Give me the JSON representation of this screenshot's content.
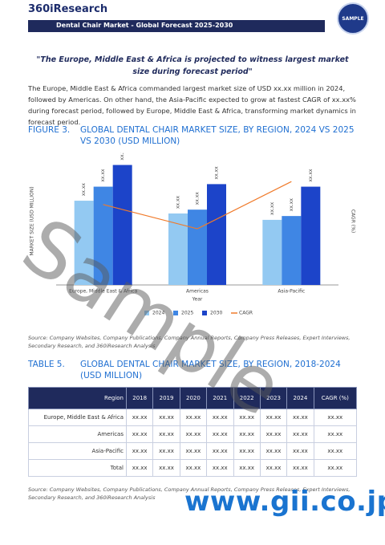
{
  "header": {
    "logo": "360iResearch",
    "title": "Dental Chair Market - Global Forecast 2025-2030",
    "badge": "SAMPLE"
  },
  "quote": "\"The Europe, Middle East & Africa is projected to witness largest market size during forecast period\"",
  "paragraph": "The Europe, Middle East & Africa commanded largest market size of USD xx.xx million in 2024, followed by Americas. On other hand, the Asia-Pacific expected to grow at fastest CAGR of xx.xx% during forecast period, followed by Europe, Middle East & Africa, transforming market dynamics in forecast period.",
  "figure": {
    "number": "FIGURE 3.",
    "title": "GLOBAL DENTAL CHAIR MARKET SIZE, BY REGION, 2024 VS 2025 VS 2030 (USD MILLION)",
    "source": "Source: Company Websites, Company Publications, Company Annual Reports, Company Press Releases, Expert Interviews, Secondary Research, and 360iResearch Analysis"
  },
  "chart_data": {
    "type": "bar",
    "categories": [
      "Europe, Middle East & Africa",
      "Americas",
      "Asia-Pacific"
    ],
    "x_label": "Year",
    "y_label": "MARKET SIZE (USD MILLION)",
    "y2_label": "CAGR (%)",
    "ylim": [
      0,
      100
    ],
    "y2lim": [
      0,
      100
    ],
    "series": [
      {
        "name": "2024",
        "color": "#93c9f2",
        "values": [
          66,
          56,
          51
        ],
        "value_labels": [
          "xx.xx",
          "xx.xx",
          "xx.xx"
        ]
      },
      {
        "name": "2025",
        "color": "#3f86e4",
        "values": [
          77,
          59,
          54
        ],
        "value_labels": [
          "xx.xx",
          "xx.xx",
          "xx.xx"
        ]
      },
      {
        "name": "2030",
        "color": "#1c44c9",
        "values": [
          94,
          79,
          77
        ],
        "value_labels": [
          "xx.xx",
          "xx.xx",
          "xx.xx"
        ]
      },
      {
        "name": "CAGR",
        "color": "#f07a2a",
        "axis": "y2",
        "type": "line",
        "values": [
          63,
          44,
          81
        ]
      }
    ]
  },
  "table": {
    "number": "TABLE 5.",
    "title": "GLOBAL DENTAL CHAIR MARKET SIZE, BY REGION, 2018-2024 (USD MILLION)",
    "columns": [
      "Region",
      "2018",
      "2019",
      "2020",
      "2021",
      "2022",
      "2023",
      "2024",
      "CAGR (%)"
    ],
    "rows": [
      [
        "Europe, Middle East & Africa",
        "xx.xx",
        "xx.xx",
        "xx.xx",
        "xx.xx",
        "xx.xx",
        "xx.xx",
        "xx.xx",
        "xx.xx"
      ],
      [
        "Americas",
        "xx.xx",
        "xx.xx",
        "xx.xx",
        "xx.xx",
        "xx.xx",
        "xx.xx",
        "xx.xx",
        "xx.xx"
      ],
      [
        "Asia-Pacific",
        "xx.xx",
        "xx.xx",
        "xx.xx",
        "xx.xx",
        "xx.xx",
        "xx.xx",
        "xx.xx",
        "xx.xx"
      ],
      [
        "Total",
        "xx.xx",
        "xx.xx",
        "xx.xx",
        "xx.xx",
        "xx.xx",
        "xx.xx",
        "xx.xx",
        "xx.xx"
      ]
    ],
    "source": "Source: Company Websites, Company Publications, Company Annual Reports, Company Press Releases, Expert Interviews, Secondary Research, and 360iResearch Analysis"
  },
  "watermark": "Sample",
  "footer": "www.gii.co.jp"
}
